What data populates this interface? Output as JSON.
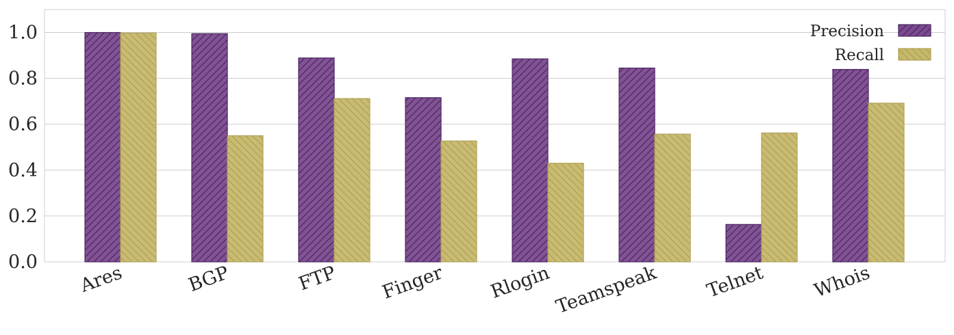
{
  "chart_data": {
    "type": "bar",
    "title": "",
    "xlabel": "",
    "ylabel": "",
    "categories": [
      "Ares",
      "BGP",
      "FTP",
      "Finger",
      "Rlogin",
      "Teamspeak",
      "Telnet",
      "Whois"
    ],
    "series": [
      {
        "name": "Precision",
        "color": "#7b4a8e",
        "values": [
          1.0,
          0.995,
          0.889,
          0.716,
          0.885,
          0.845,
          0.163,
          0.839
        ]
      },
      {
        "name": "Recall",
        "color": "#c6b86a",
        "values": [
          0.998,
          0.55,
          0.712,
          0.527,
          0.43,
          0.557,
          0.562,
          0.692
        ]
      }
    ],
    "yticks": [
      "0.0",
      "0.2",
      "0.4",
      "0.6",
      "0.8",
      "1.0"
    ],
    "ylim": [
      0,
      1.1
    ],
    "grid": true,
    "legend": "top-right",
    "xtick_rotation": "slanted"
  }
}
